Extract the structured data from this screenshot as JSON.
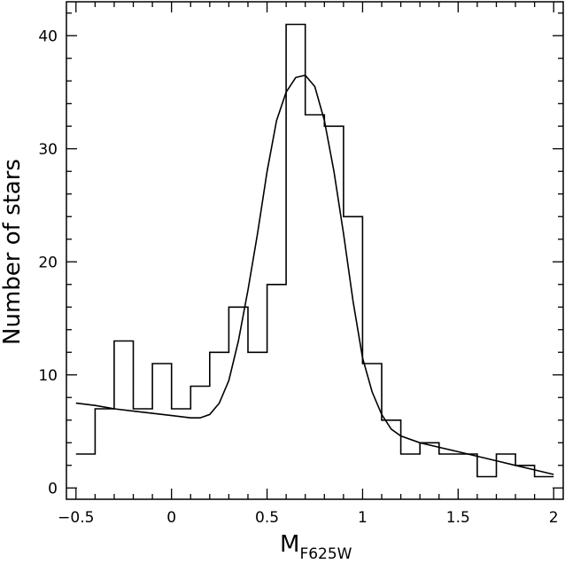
{
  "chart_data": {
    "type": "histogram",
    "xlabel": "M",
    "xlabel_sub": "F625W",
    "ylabel": "Number of stars",
    "xlim": [
      -0.55,
      2.05
    ],
    "ylim": [
      -1,
      43
    ],
    "x_ticks": [
      -0.5,
      0,
      0.5,
      1,
      1.5,
      2
    ],
    "x_tick_labels": [
      "−0.5",
      "0",
      "0.5",
      "1",
      "1.5",
      "2"
    ],
    "y_ticks": [
      0,
      10,
      20,
      30,
      40
    ],
    "y_tick_labels": [
      "0",
      "10",
      "20",
      "30",
      "40"
    ],
    "bin_edges": [
      -0.5,
      -0.4,
      -0.3,
      -0.2,
      -0.1,
      0.0,
      0.1,
      0.2,
      0.3,
      0.4,
      0.5,
      0.6,
      0.7,
      0.8,
      0.9,
      1.0,
      1.1,
      1.2,
      1.3,
      1.4,
      1.5,
      1.6,
      1.7,
      1.8,
      1.9,
      2.0
    ],
    "counts": [
      3,
      7,
      13,
      7,
      11,
      7,
      9,
      12,
      16,
      12,
      18,
      41,
      33,
      32,
      24,
      11,
      6,
      3,
      4,
      3,
      3,
      1,
      3,
      2,
      1
    ],
    "fit_curve": {
      "x": [
        -0.5,
        -0.4,
        -0.3,
        -0.2,
        -0.1,
        0.0,
        0.1,
        0.15,
        0.2,
        0.25,
        0.3,
        0.35,
        0.4,
        0.45,
        0.5,
        0.55,
        0.6,
        0.65,
        0.7,
        0.75,
        0.8,
        0.85,
        0.9,
        0.95,
        1.0,
        1.05,
        1.1,
        1.15,
        1.2,
        1.3,
        1.4,
        1.5,
        1.6,
        1.7,
        1.8,
        1.9,
        2.0
      ],
      "y": [
        7.5,
        7.3,
        7.0,
        6.8,
        6.6,
        6.4,
        6.2,
        6.2,
        6.5,
        7.5,
        9.5,
        13.0,
        17.5,
        22.5,
        28.0,
        32.5,
        35.0,
        36.3,
        36.5,
        35.5,
        32.5,
        28.0,
        22.5,
        16.5,
        11.5,
        8.5,
        6.5,
        5.2,
        4.6,
        4.0,
        3.6,
        3.2,
        2.8,
        2.4,
        2.0,
        1.6,
        1.2
      ]
    }
  }
}
